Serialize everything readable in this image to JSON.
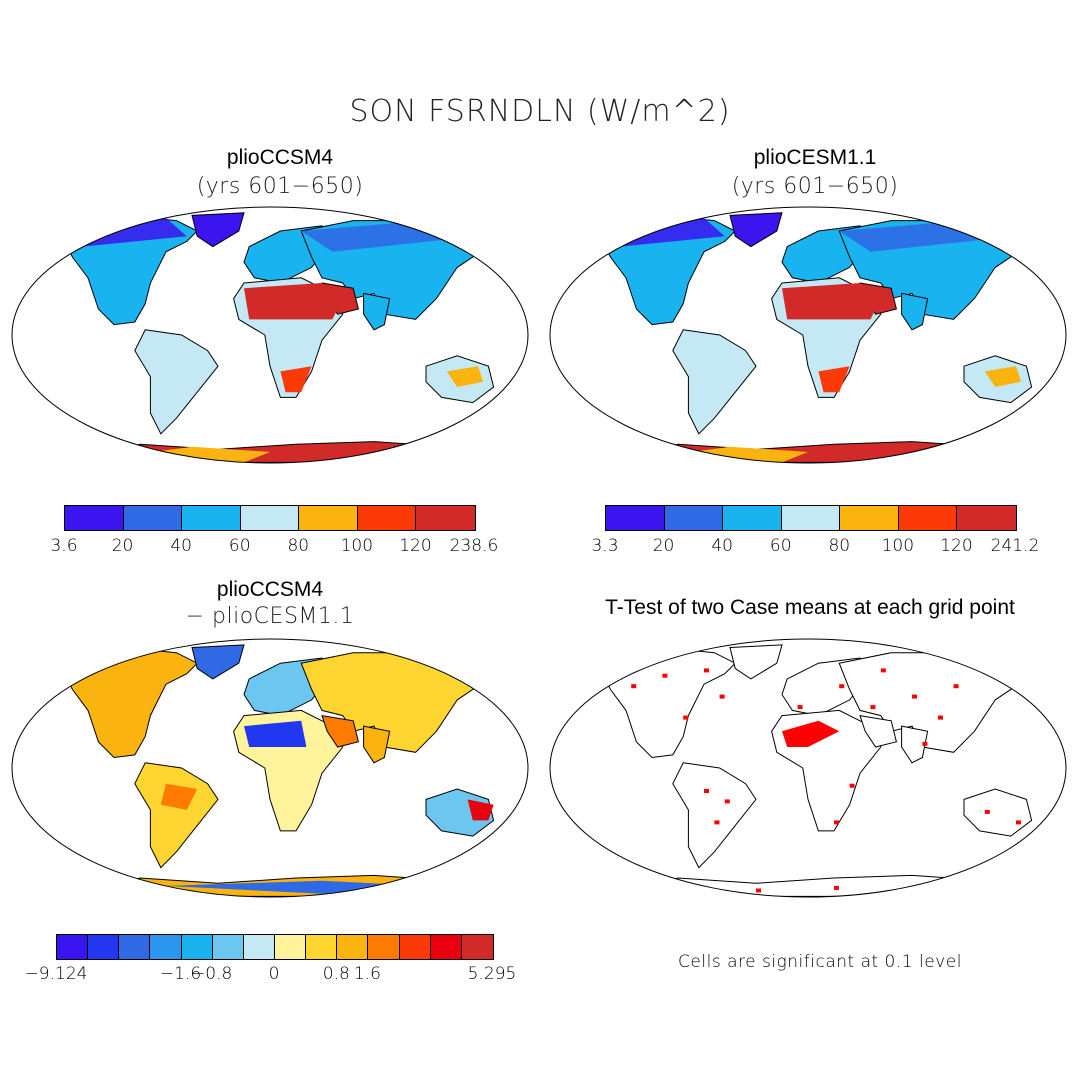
{
  "title": "SON FSRNDLN (W/m^2)",
  "panels": [
    {
      "id": "tl",
      "title": "plioCCSM4",
      "subtitle": "(yrs 601−650)",
      "colorbar": {
        "colors": [
          "#3b14f0",
          "#2f6ae4",
          "#19b4f0",
          "#c4e8f4",
          "#fbb40f",
          "#fb3a08",
          "#d22a28"
        ],
        "ticks": [
          "3.6",
          "20",
          "40",
          "60",
          "80",
          "100",
          "120",
          "238.6"
        ]
      }
    },
    {
      "id": "tr",
      "title": "plioCESM1.1",
      "subtitle": "(yrs 601−650)",
      "colorbar": {
        "colors": [
          "#3b14f0",
          "#2f6ae4",
          "#19b4f0",
          "#c4e8f4",
          "#fbb40f",
          "#fb3a08",
          "#d22a28"
        ],
        "ticks": [
          "3.3",
          "20",
          "40",
          "60",
          "80",
          "100",
          "120",
          "241.2"
        ]
      }
    },
    {
      "id": "bl",
      "title": "plioCCSM4",
      "subtitle": "− plioCESM1.1",
      "colorbar": {
        "colors": [
          "#3a14f0",
          "#2238f0",
          "#2f6ae4",
          "#2a96ee",
          "#19b4f0",
          "#6cc6f0",
          "#c4e8f4",
          "#fff39c",
          "#ffd531",
          "#fbb40f",
          "#ff7a00",
          "#fb3a08",
          "#e8000f",
          "#d22a28"
        ],
        "ticks": [
          "−9.124",
          "−1.6",
          "−0.8",
          "0",
          "0.8",
          "1.6",
          "5.295"
        ]
      }
    },
    {
      "id": "br",
      "title": "T-Test of two Case means at each grid point",
      "note": "Cells are significant at 0.1 level"
    }
  ]
}
